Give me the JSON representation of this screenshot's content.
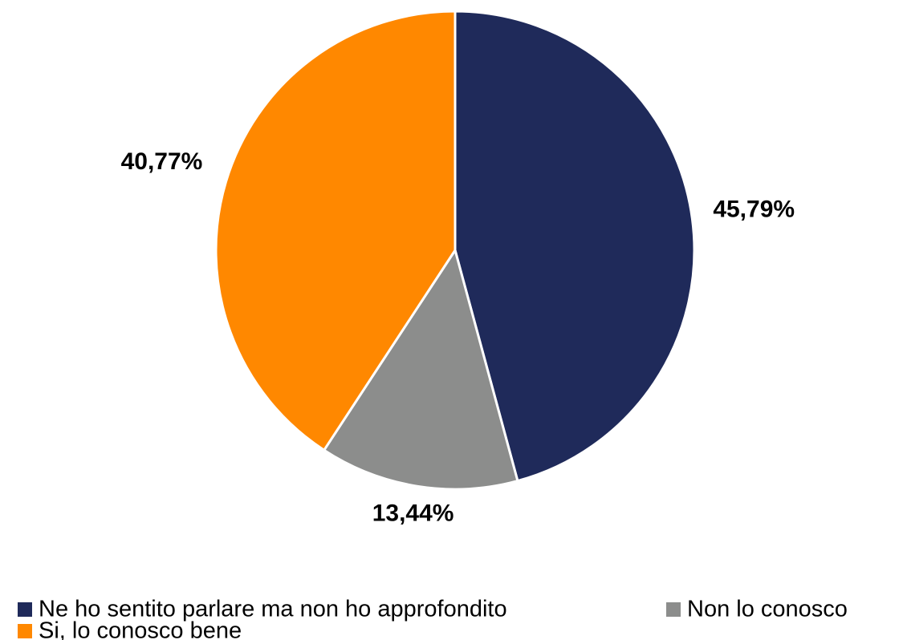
{
  "chart_data": {
    "type": "pie",
    "categories": [
      "Ne ho sentito parlare ma non ho approfondito",
      "Non lo conosco",
      "Si, lo conosco bene"
    ],
    "values": [
      45.79,
      13.44,
      40.77
    ],
    "value_labels": [
      "45,79%",
      "13,44%",
      "40,77%"
    ],
    "colors": [
      "#1f2a5a",
      "#8c8d8c",
      "#ff8800"
    ],
    "legend": "bottom"
  }
}
